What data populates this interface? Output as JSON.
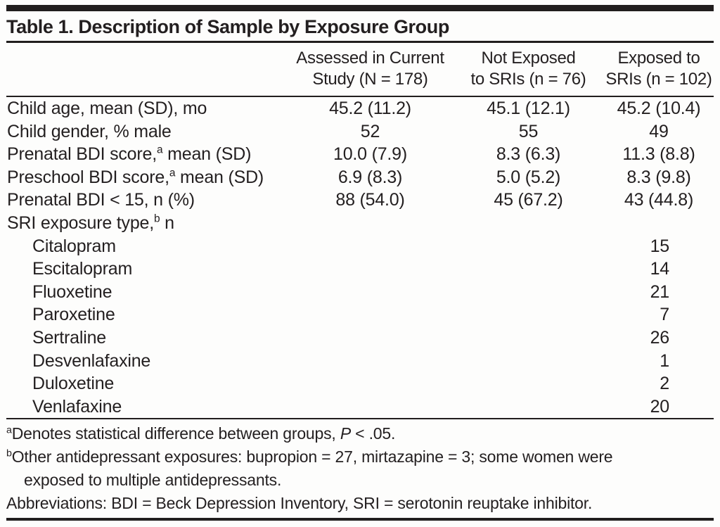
{
  "table": {
    "title": "Table 1. Description of Sample by Exposure Group",
    "columns": [
      {
        "line1": "Assessed in Current",
        "line2": "Study (N = 178)"
      },
      {
        "line1": "Not Exposed",
        "line2": "to SRIs (n = 76)"
      },
      {
        "line1": "Exposed to",
        "line2": "SRIs (n = 102)"
      }
    ],
    "rows": [
      {
        "label": "Child age, mean (SD), mo",
        "sup": "",
        "label2": "",
        "indent": false,
        "c1": "45.2 (11.2)",
        "c2": "45.1 (12.1)",
        "c3": "45.2 (10.4)",
        "digit": false
      },
      {
        "label": "Child gender, % male",
        "sup": "",
        "label2": "",
        "indent": false,
        "c1": "52",
        "c2": "55",
        "c3": "49",
        "digit": false
      },
      {
        "label": "Prenatal BDI score,",
        "sup": "a",
        "label2": " mean (SD)",
        "indent": false,
        "c1": "10.0 (7.9)",
        "c2": "8.3 (6.3)",
        "c3": "11.3 (8.8)",
        "digit": false
      },
      {
        "label": "Preschool BDI score,",
        "sup": "a",
        "label2": " mean (SD)",
        "indent": false,
        "c1": "6.9 (8.3)",
        "c2": "5.0 (5.2)",
        "c3": "8.3 (9.8)",
        "digit": false
      },
      {
        "label": "Prenatal BDI < 15, n (%)",
        "sup": "",
        "label2": "",
        "indent": false,
        "c1": "88 (54.0)",
        "c2": "45 (67.2)",
        "c3": "43 (44.8)",
        "digit": false
      },
      {
        "label": "SRI exposure type,",
        "sup": "b",
        "label2": " n",
        "indent": false,
        "c1": "",
        "c2": "",
        "c3": "",
        "digit": false
      },
      {
        "label": "Citalopram",
        "sup": "",
        "label2": "",
        "indent": true,
        "c1": "",
        "c2": "",
        "c3": "15",
        "digit": true
      },
      {
        "label": "Escitalopram",
        "sup": "",
        "label2": "",
        "indent": true,
        "c1": "",
        "c2": "",
        "c3": "14",
        "digit": true
      },
      {
        "label": "Fluoxetine",
        "sup": "",
        "label2": "",
        "indent": true,
        "c1": "",
        "c2": "",
        "c3": "21",
        "digit": true
      },
      {
        "label": "Paroxetine",
        "sup": "",
        "label2": "",
        "indent": true,
        "c1": "",
        "c2": "",
        "c3": "7",
        "digit": true
      },
      {
        "label": "Sertraline",
        "sup": "",
        "label2": "",
        "indent": true,
        "c1": "",
        "c2": "",
        "c3": "26",
        "digit": true
      },
      {
        "label": "Desvenlafaxine",
        "sup": "",
        "label2": "",
        "indent": true,
        "c1": "",
        "c2": "",
        "c3": "1",
        "digit": true
      },
      {
        "label": "Duloxetine",
        "sup": "",
        "label2": "",
        "indent": true,
        "c1": "",
        "c2": "",
        "c3": "2",
        "digit": true
      },
      {
        "label": "Venlafaxine",
        "sup": "",
        "label2": "",
        "indent": true,
        "c1": "",
        "c2": "",
        "c3": "20",
        "digit": true
      }
    ],
    "footnotes": [
      {
        "sup": "a",
        "indent": false,
        "segments": [
          {
            "text": "Denotes statistical difference between groups, ",
            "italic": false
          },
          {
            "text": "P",
            "italic": true
          },
          {
            "text": " < .05.",
            "italic": false
          }
        ]
      },
      {
        "sup": "b",
        "indent": false,
        "segments": [
          {
            "text": "Other antidepressant exposures: bupropion = 27, mirtazapine = 3; some women were",
            "italic": false
          }
        ]
      },
      {
        "sup": "",
        "indent": true,
        "segments": [
          {
            "text": "exposed to multiple antidepressants.",
            "italic": false
          }
        ]
      },
      {
        "sup": "",
        "indent": false,
        "segments": [
          {
            "text": "Abbreviations: BDI = Beck Depression Inventory, SRI = serotonin reuptake inhibitor.",
            "italic": false
          }
        ]
      }
    ]
  }
}
